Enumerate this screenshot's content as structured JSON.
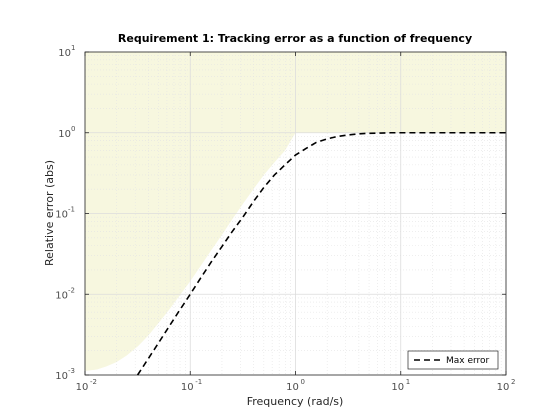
{
  "chart_data": {
    "type": "line",
    "title": "Requirement 1: Tracking error as a function of frequency",
    "xlabel": "Frequency (rad/s)",
    "ylabel": "Relative error (abs)",
    "xscale": "log",
    "yscale": "log",
    "xlim": [
      0.01,
      100
    ],
    "ylim": [
      0.001,
      10
    ],
    "xticks": [
      0.01,
      0.1,
      1,
      10,
      100
    ],
    "yticks": [
      0.001,
      0.01,
      0.1,
      1,
      10
    ],
    "tick_base": "10",
    "xtick_exponents": [
      "-2",
      "-1",
      "0",
      "1",
      "2"
    ],
    "ytick_exponents": [
      "-3",
      "-2",
      "-1",
      "0",
      "1"
    ],
    "grid": true,
    "minor_grid": true,
    "legend_position": "bottom-right",
    "region": {
      "description_hidden": true,
      "color": "#f7f7df",
      "lower_boundary": {
        "x": [
          0.01,
          0.013,
          0.016,
          0.02,
          0.025,
          0.032,
          0.04,
          0.05,
          0.063,
          0.079,
          0.1,
          0.126,
          0.158,
          0.2,
          0.251,
          0.316,
          0.398,
          0.5,
          0.631,
          0.794,
          1.0
        ],
        "y": [
          0.00112,
          0.00117,
          0.00128,
          0.00145,
          0.00175,
          0.00229,
          0.00309,
          0.0044,
          0.00643,
          0.00959,
          0.0145,
          0.0225,
          0.0349,
          0.0544,
          0.0848,
          0.131,
          0.2,
          0.3,
          0.43,
          0.6,
          1.0
        ]
      },
      "upper_value": 10
    },
    "series": [
      {
        "name": "Max error",
        "style": "dashed",
        "color": "#000000",
        "x": [
          0.0316,
          0.04,
          0.05,
          0.063,
          0.079,
          0.1,
          0.126,
          0.158,
          0.2,
          0.251,
          0.316,
          0.398,
          0.5,
          0.631,
          0.794,
          1.0,
          1.26,
          1.58,
          2.0,
          2.51,
          3.16,
          3.98,
          5.01,
          6.31,
          7.94,
          10,
          15.8,
          25.1,
          39.8,
          63.1,
          100
        ],
        "y": [
          0.001,
          0.0016,
          0.0025,
          0.004,
          0.0063,
          0.01,
          0.016,
          0.025,
          0.039,
          0.06,
          0.09,
          0.14,
          0.21,
          0.3,
          0.4,
          0.53,
          0.64,
          0.76,
          0.84,
          0.9,
          0.94,
          0.97,
          0.985,
          0.99,
          1.0,
          1.0,
          1.0,
          1.0,
          1.0,
          1.0,
          1.0
        ]
      }
    ]
  }
}
